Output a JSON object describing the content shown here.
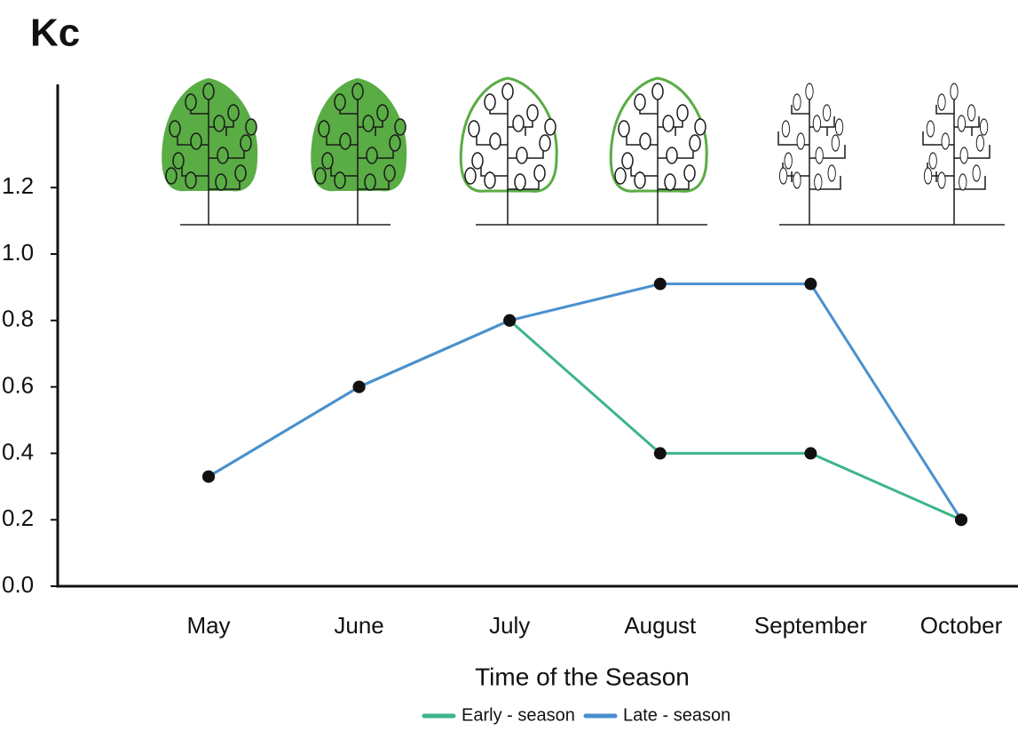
{
  "chart_data": {
    "type": "line",
    "title": "Kc",
    "x_label": "Time of the Season",
    "categories": [
      "May",
      "June",
      "July",
      "August",
      "September",
      "October"
    ],
    "series": [
      {
        "name": "Early - season",
        "color": "#3db58a",
        "values": [
          0.33,
          0.6,
          0.8,
          0.4,
          0.4,
          0.2
        ]
      },
      {
        "name": "Late - season",
        "color": "#4a90d0",
        "values": [
          0.33,
          0.6,
          0.8,
          0.91,
          0.91,
          0.2
        ]
      }
    ],
    "marker_color": "#111111",
    "ylim": [
      0,
      1.5
    ],
    "yticks": [
      {
        "value": 0,
        "label": "0.0"
      },
      0.2,
      0.4,
      0.6,
      0.8,
      {
        "value": 1,
        "label": "1.0"
      },
      1.2
    ],
    "grid": false
  }
}
